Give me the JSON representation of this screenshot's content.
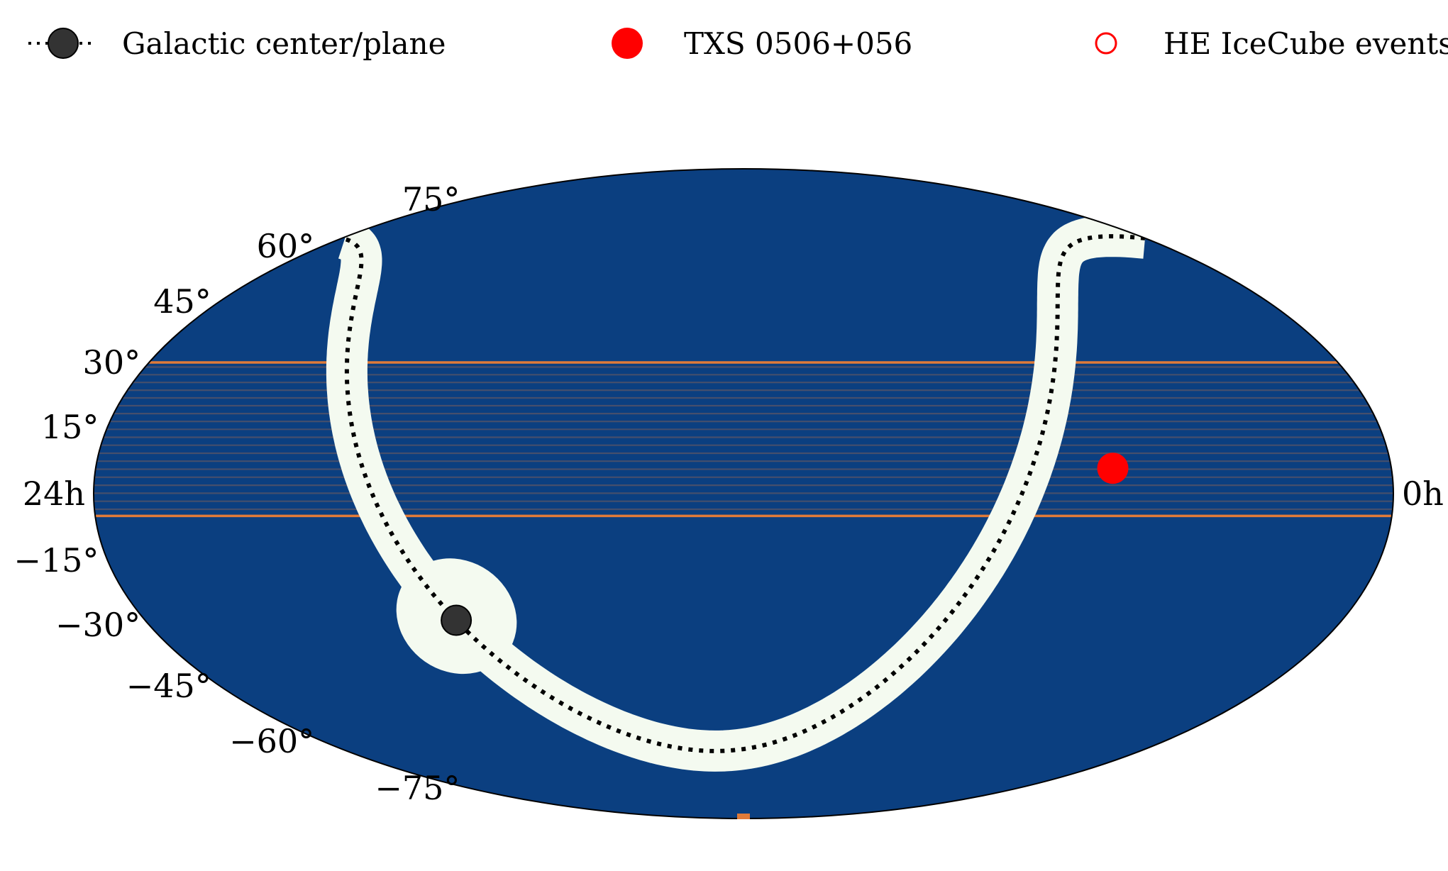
{
  "chart_data": {
    "type": "scatter",
    "projection": "mollweide",
    "title": "",
    "xlabel": "",
    "ylabel": "",
    "background_color": "#0b3f80",
    "band_color": "#e07b39",
    "galactic_plane_color": "#f4faf0",
    "ra_labels": [
      {
        "text": "24h",
        "ra_h": 24
      },
      {
        "text": "0h",
        "ra_h": 0
      }
    ],
    "dec_labels": [
      {
        "text": "75°",
        "dec": 75
      },
      {
        "text": "60°",
        "dec": 60
      },
      {
        "text": "45°",
        "dec": 45
      },
      {
        "text": "30°",
        "dec": 30
      },
      {
        "text": "15°",
        "dec": 15
      },
      {
        "text": "−15°",
        "dec": -15
      },
      {
        "text": "−30°",
        "dec": -30
      },
      {
        "text": "−45°",
        "dec": -45
      },
      {
        "text": "−60°",
        "dec": -60
      },
      {
        "text": "−75°",
        "dec": -75
      }
    ],
    "declination_band": {
      "dec_min": -5,
      "dec_max": 30
    },
    "legend_position": "top",
    "legend": [
      {
        "name": "Galactic center/plane",
        "marker": "dotted-line-with-dark-circle",
        "color": "#333333"
      },
      {
        "name": "TXS 0506+056",
        "marker": "filled-circle",
        "color": "#ff0000"
      },
      {
        "name": "HE IceCube events",
        "marker": "open-circle",
        "color": "#ff0000"
      }
    ],
    "galactic_center": {
      "ra_deg": 266.4,
      "dec_deg": -28.9
    },
    "series": [
      {
        "name": "TXS 0506+056",
        "points": [
          {
            "ra_deg": 77.4,
            "dec_deg": 5.7
          }
        ]
      },
      {
        "name": "HE IceCube events",
        "points": []
      }
    ]
  }
}
